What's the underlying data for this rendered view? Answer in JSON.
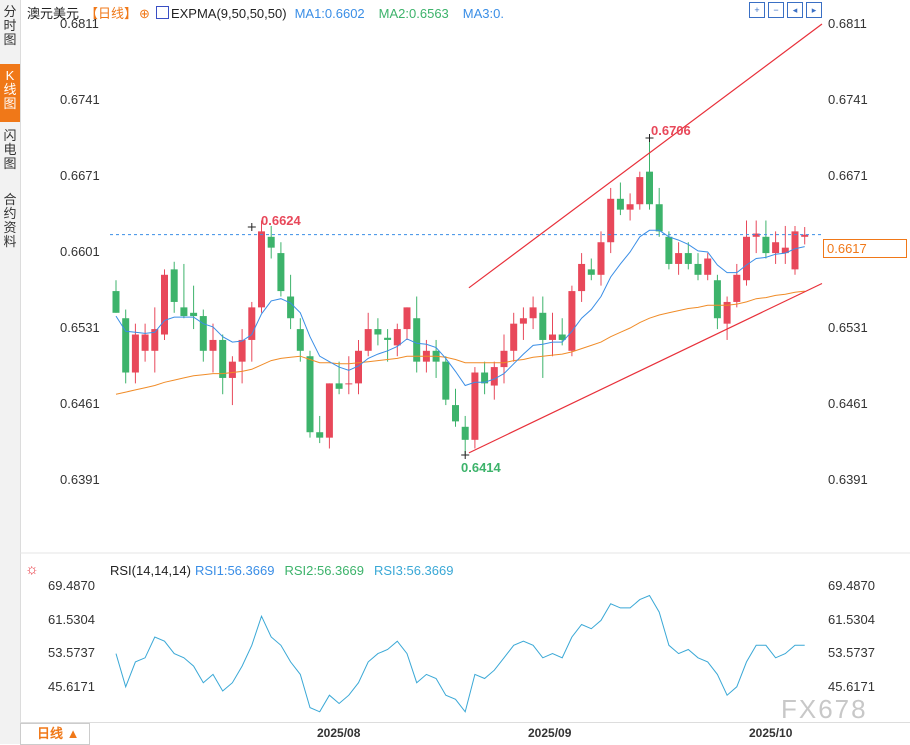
{
  "sidebar": {
    "tabs": [
      {
        "label": "分时图",
        "active": false
      },
      {
        "label": "K线图",
        "active": true
      },
      {
        "label": "闪电图",
        "active": false
      },
      {
        "label": "合约资料",
        "active": false
      }
    ]
  },
  "header": {
    "symbol": "澳元美元",
    "period": "【日线】",
    "period_icon": "circle-plus-icon",
    "indicator_icon": "chart-icon",
    "indicator": "EXPMA(9,50,50,50)",
    "ma1": "MA1:0.6602",
    "ma2": "MA2:0.6563",
    "ma3": "MA3:0.",
    "colors": {
      "ma1": "#3a8ee6",
      "ma2": "#3db36b",
      "ma3": "#3a8ee6"
    }
  },
  "toolbar": {
    "icons": [
      "zoom-in-icon",
      "zoom-out-icon",
      "step-back-icon",
      "step-forward-icon"
    ]
  },
  "price_axis": {
    "labels": [
      "0.6811",
      "0.6741",
      "0.6671",
      "0.6601",
      "0.6531",
      "0.6461",
      "0.6391"
    ]
  },
  "last_price": "0.6617",
  "annotations": {
    "high1": "0.6624",
    "high2": "0.6706",
    "low": "0.6414"
  },
  "rsi": {
    "title": "RSI(14,14,14)",
    "rsi1": "RSI1:56.3669",
    "rsi2": "RSI2:56.3669",
    "rsi3": "RSI3:56.3669",
    "axis_labels": [
      "69.4870",
      "61.5304",
      "53.5737",
      "45.6171"
    ],
    "settings_icon": "sun-gear-icon"
  },
  "x_axis": {
    "labels": [
      "2025/08",
      "2025/09",
      "2025/10"
    ]
  },
  "bottom": {
    "period_button": "日线 ▲"
  },
  "watermark": "FX678",
  "chart_data": [
    {
      "type": "candlestick",
      "title": "澳元美元",
      "ylim": [
        0.6391,
        0.6811
      ],
      "colors": {
        "up": "#e8485a",
        "down": "#3db36b",
        "ema1": "#3a8ee6",
        "ema2": "#f08c28",
        "channel": "#e8303a",
        "ref_line": "#3a8ee6"
      },
      "candles": [
        [
          0.6565,
          0.6575,
          0.6545,
          0.6545
        ],
        [
          0.654,
          0.6548,
          0.648,
          0.649
        ],
        [
          0.649,
          0.6535,
          0.648,
          0.6525
        ],
        [
          0.651,
          0.6535,
          0.65,
          0.6525
        ],
        [
          0.651,
          0.655,
          0.649,
          0.653
        ],
        [
          0.6525,
          0.6585,
          0.652,
          0.658
        ],
        [
          0.6585,
          0.6592,
          0.6545,
          0.6555
        ],
        [
          0.655,
          0.659,
          0.654,
          0.6542
        ],
        [
          0.6545,
          0.657,
          0.653,
          0.6542
        ],
        [
          0.6542,
          0.6548,
          0.65,
          0.651
        ],
        [
          0.651,
          0.6535,
          0.649,
          0.652
        ],
        [
          0.652,
          0.6525,
          0.647,
          0.6485
        ],
        [
          0.6485,
          0.6505,
          0.646,
          0.65
        ],
        [
          0.65,
          0.653,
          0.648,
          0.652
        ],
        [
          0.652,
          0.6555,
          0.65,
          0.655
        ],
        [
          0.655,
          0.663,
          0.6545,
          0.662
        ],
        [
          0.6615,
          0.6625,
          0.6595,
          0.6605
        ],
        [
          0.66,
          0.661,
          0.656,
          0.6565
        ],
        [
          0.656,
          0.658,
          0.653,
          0.654
        ],
        [
          0.653,
          0.654,
          0.65,
          0.651
        ],
        [
          0.6505,
          0.651,
          0.643,
          0.6435
        ],
        [
          0.6435,
          0.645,
          0.6425,
          0.643
        ],
        [
          0.643,
          0.648,
          0.642,
          0.648
        ],
        [
          0.648,
          0.65,
          0.647,
          0.6475
        ],
        [
          0.648,
          0.6505,
          0.647,
          0.648
        ],
        [
          0.648,
          0.652,
          0.647,
          0.651
        ],
        [
          0.651,
          0.6545,
          0.6505,
          0.653
        ],
        [
          0.653,
          0.654,
          0.6515,
          0.6525
        ],
        [
          0.6522,
          0.653,
          0.65,
          0.652
        ],
        [
          0.6515,
          0.6535,
          0.6505,
          0.653
        ],
        [
          0.653,
          0.655,
          0.652,
          0.655
        ],
        [
          0.654,
          0.656,
          0.649,
          0.65
        ],
        [
          0.65,
          0.652,
          0.649,
          0.651
        ],
        [
          0.651,
          0.652,
          0.6485,
          0.65
        ],
        [
          0.65,
          0.6505,
          0.646,
          0.6465
        ],
        [
          0.646,
          0.6475,
          0.644,
          0.6445
        ],
        [
          0.644,
          0.645,
          0.6415,
          0.6428
        ],
        [
          0.6428,
          0.6495,
          0.642,
          0.649
        ],
        [
          0.649,
          0.65,
          0.647,
          0.648
        ],
        [
          0.6478,
          0.65,
          0.6465,
          0.6495
        ],
        [
          0.6495,
          0.6525,
          0.648,
          0.651
        ],
        [
          0.651,
          0.6545,
          0.65,
          0.6535
        ],
        [
          0.6535,
          0.655,
          0.652,
          0.654
        ],
        [
          0.654,
          0.656,
          0.653,
          0.655
        ],
        [
          0.6545,
          0.656,
          0.6485,
          0.652
        ],
        [
          0.652,
          0.6545,
          0.6505,
          0.6525
        ],
        [
          0.6525,
          0.654,
          0.6515,
          0.652
        ],
        [
          0.651,
          0.657,
          0.6505,
          0.6565
        ],
        [
          0.6565,
          0.66,
          0.6555,
          0.659
        ],
        [
          0.6585,
          0.6595,
          0.6575,
          0.658
        ],
        [
          0.658,
          0.662,
          0.657,
          0.661
        ],
        [
          0.661,
          0.666,
          0.66,
          0.665
        ],
        [
          0.665,
          0.6665,
          0.6635,
          0.664
        ],
        [
          0.664,
          0.6655,
          0.663,
          0.6645
        ],
        [
          0.6645,
          0.6675,
          0.664,
          0.667
        ],
        [
          0.6675,
          0.6706,
          0.664,
          0.6645
        ],
        [
          0.6645,
          0.666,
          0.6615,
          0.662
        ],
        [
          0.6615,
          0.662,
          0.6585,
          0.659
        ],
        [
          0.659,
          0.661,
          0.658,
          0.66
        ],
        [
          0.66,
          0.661,
          0.6585,
          0.659
        ],
        [
          0.659,
          0.66,
          0.6575,
          0.658
        ],
        [
          0.658,
          0.66,
          0.6575,
          0.6595
        ],
        [
          0.6575,
          0.658,
          0.653,
          0.654
        ],
        [
          0.6535,
          0.656,
          0.652,
          0.6555
        ],
        [
          0.6555,
          0.659,
          0.655,
          0.658
        ],
        [
          0.6575,
          0.663,
          0.657,
          0.6615
        ],
        [
          0.6615,
          0.663,
          0.66,
          0.6618
        ],
        [
          0.6615,
          0.663,
          0.6595,
          0.66
        ],
        [
          0.66,
          0.662,
          0.659,
          0.661
        ],
        [
          0.66,
          0.6625,
          0.659,
          0.6605
        ],
        [
          0.6585,
          0.6625,
          0.658,
          0.662
        ],
        [
          0.6615,
          0.6624,
          0.6608,
          0.6617
        ]
      ],
      "ema1": [
        0.6542,
        0.6528,
        0.6527,
        0.6526,
        0.6527,
        0.6538,
        0.6541,
        0.6541,
        0.6541,
        0.6535,
        0.6532,
        0.6523,
        0.6518,
        0.6519,
        0.6525,
        0.6544,
        0.6556,
        0.6558,
        0.6554,
        0.6545,
        0.6523,
        0.6505,
        0.65,
        0.6495,
        0.6492,
        0.6496,
        0.6503,
        0.6507,
        0.651,
        0.6514,
        0.6521,
        0.6517,
        0.6516,
        0.6513,
        0.6503,
        0.6491,
        0.6478,
        0.6481,
        0.6481,
        0.6484,
        0.6489,
        0.6498,
        0.6507,
        0.6515,
        0.6516,
        0.6518,
        0.6518,
        0.6528,
        0.654,
        0.6548,
        0.656,
        0.6578,
        0.659,
        0.6601,
        0.6615,
        0.6621,
        0.6621,
        0.6615,
        0.6612,
        0.6608,
        0.6602,
        0.6601,
        0.6589,
        0.6582,
        0.6582,
        0.6589,
        0.6595,
        0.6596,
        0.6599,
        0.66,
        0.6604,
        0.6606
      ],
      "ema2": [
        0.647,
        0.6472,
        0.6474,
        0.6476,
        0.6478,
        0.6481,
        0.6483,
        0.6485,
        0.6487,
        0.6488,
        0.6489,
        0.6489,
        0.649,
        0.6491,
        0.6493,
        0.6497,
        0.6501,
        0.6503,
        0.6504,
        0.6505,
        0.6502,
        0.6499,
        0.6499,
        0.6498,
        0.6498,
        0.6499,
        0.65,
        0.6501,
        0.6502,
        0.6503,
        0.6505,
        0.6505,
        0.6505,
        0.6505,
        0.6504,
        0.6502,
        0.6499,
        0.6499,
        0.6499,
        0.6499,
        0.6499,
        0.6501,
        0.6502,
        0.6504,
        0.6505,
        0.6506,
        0.6507,
        0.6509,
        0.6512,
        0.6515,
        0.6518,
        0.6523,
        0.6527,
        0.6531,
        0.6536,
        0.654,
        0.6543,
        0.6545,
        0.6547,
        0.6549,
        0.655,
        0.6552,
        0.6552,
        0.6552,
        0.6553,
        0.6555,
        0.6558,
        0.6559,
        0.6561,
        0.6562,
        0.6564,
        0.6565
      ],
      "ref_line": 0.6617,
      "channel": {
        "upper": [
          [
            0.6568,
            0.6811
          ],
          [
            37,
            71
          ]
        ],
        "lower": [
          [
            0.6416,
            0.6572
          ],
          [
            37,
            71
          ]
        ]
      }
    },
    {
      "type": "line",
      "title": "RSI(14,14,14)",
      "ylim": [
        39.5,
        72
      ],
      "series": [
        {
          "name": "RSI1",
          "values": [
            55,
            47,
            53,
            54,
            59,
            58,
            55,
            54,
            52,
            48,
            50,
            46,
            48,
            52,
            57,
            64,
            59,
            57,
            53,
            50,
            42,
            41,
            45,
            43,
            45,
            48,
            53,
            55,
            56,
            58,
            55,
            48,
            50,
            49,
            45,
            44,
            41,
            50,
            49,
            51,
            54,
            57,
            58,
            57,
            54,
            55,
            54,
            59,
            62,
            61,
            63,
            67,
            66,
            66,
            68,
            69,
            65,
            57,
            55,
            56,
            54,
            53,
            50,
            45,
            47,
            53,
            57,
            57,
            54,
            55,
            57,
            57
          ]
        }
      ]
    }
  ]
}
